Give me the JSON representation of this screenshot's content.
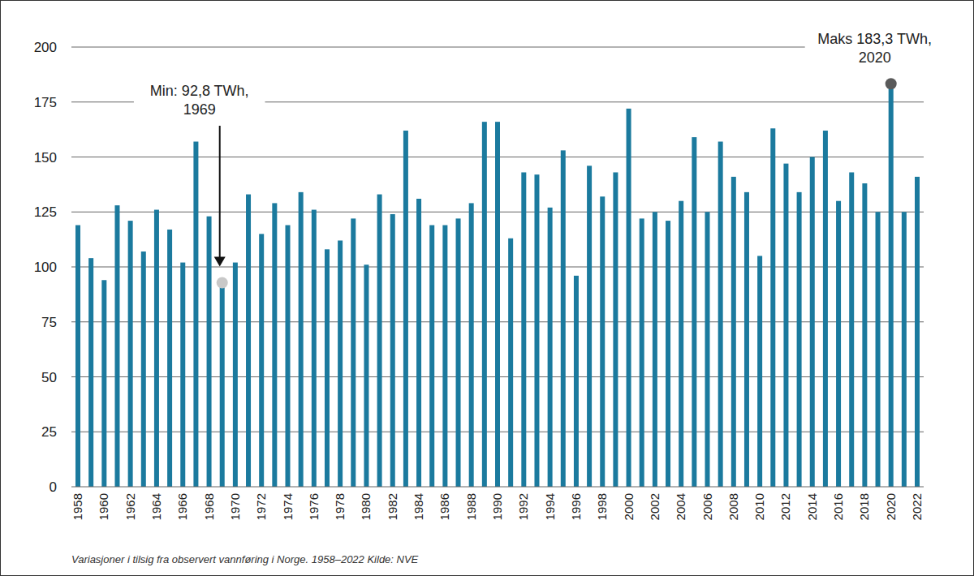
{
  "chart_data": {
    "type": "bar",
    "caption": "Variasjoner i tilsig fra observert vannføring i Norge. 1958–2022 Kilde: NVE",
    "categories": [
      "1958",
      null,
      "1960",
      null,
      "1962",
      null,
      "1964",
      null,
      "1966",
      null,
      "1968",
      null,
      "1970",
      null,
      "1972",
      null,
      "1974",
      null,
      "1976",
      null,
      "1978",
      null,
      "1980",
      null,
      "1982",
      null,
      "1984",
      null,
      "1986",
      null,
      "1988",
      null,
      "1990",
      null,
      "1992",
      null,
      "1994",
      null,
      "1996",
      null,
      "1998",
      null,
      "2000",
      null,
      "2002",
      null,
      "2004",
      null,
      "2006",
      null,
      "2008",
      null,
      "2010",
      null,
      "2012",
      null,
      "2014",
      null,
      "2016",
      null,
      "2018",
      null,
      "2020",
      null,
      "2022"
    ],
    "values": [
      119,
      104,
      94,
      128,
      121,
      107,
      126,
      117,
      102,
      157,
      123,
      92.8,
      102,
      133,
      115,
      129,
      119,
      134,
      126,
      108,
      112,
      122,
      101,
      133,
      124,
      162,
      131,
      119,
      119,
      122,
      129,
      166,
      166,
      113,
      143,
      142,
      127,
      153,
      96,
      146,
      132,
      143,
      172,
      122,
      125,
      121,
      130,
      159,
      125,
      157,
      141,
      134,
      105,
      163,
      147,
      134,
      150,
      162,
      130,
      143,
      138,
      125,
      183.3,
      125,
      141
    ],
    "color": "#1b7a9e",
    "ylim": [
      0,
      200
    ],
    "yticks": [
      0,
      25,
      50,
      75,
      100,
      125,
      150,
      175,
      200
    ],
    "grid": true,
    "annotations": [
      {
        "text": [
          "Min: 92,8 TWh,",
          "1969"
        ],
        "index": 11,
        "value": 92.8,
        "color": "#c8c8c8"
      },
      {
        "text": [
          "Maks 183,3 TWh,",
          "2020"
        ],
        "index": 62,
        "value": 183.3,
        "color": "#5a5a5a"
      }
    ]
  }
}
